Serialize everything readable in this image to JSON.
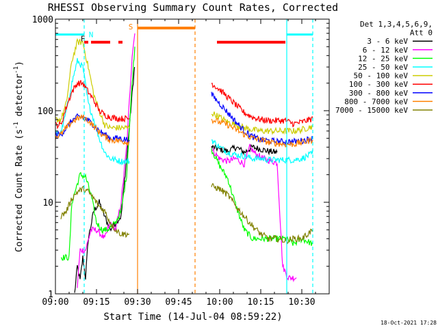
{
  "chart_data": {
    "type": "line",
    "title": "RHESSI Observing Summary Count Rates, Corrected",
    "xlabel": "Start Time (14-Jul-04 08:59:22)",
    "ylabel": "Corrected Count Rate (s",
    "ylabel_sup1": "-1",
    "ylabel_mid": " detector",
    "ylabel_sup2": "-1",
    "ylabel_end": ")",
    "y_scale": "log",
    "xlim_minutes": [
      0,
      100
    ],
    "ylim": [
      1,
      1000
    ],
    "x_ticks": [
      {
        "label": "09:00",
        "min": 0
      },
      {
        "label": "09:15",
        "min": 15
      },
      {
        "label": "09:30",
        "min": 30
      },
      {
        "label": "09:45",
        "min": 45
      },
      {
        "label": "10:00",
        "min": 60
      },
      {
        "label": "10:15",
        "min": 75
      },
      {
        "label": "10:30",
        "min": 90
      }
    ],
    "y_ticks": [
      {
        "label": "1",
        "v": 1
      },
      {
        "label": "10",
        "v": 10
      },
      {
        "label": "100",
        "v": 100
      },
      {
        "label": "1000",
        "v": 1000
      }
    ],
    "legend_title": [
      "Det 1,3,4,5,6,9,",
      "Att 0"
    ],
    "series": [
      {
        "name": "3 - 6 keV",
        "color": "#000000",
        "segments": [
          [
            [
              7,
              1
            ],
            [
              8,
              2
            ],
            [
              9,
              1.4
            ],
            [
              10,
              2.5
            ],
            [
              11,
              1.5
            ],
            [
              12,
              4
            ],
            [
              14,
              8
            ],
            [
              16,
              10
            ],
            [
              18,
              7
            ],
            [
              20,
              5
            ],
            [
              22,
              6
            ],
            [
              24,
              7
            ],
            [
              26,
              30
            ],
            [
              28,
              150
            ],
            [
              28.9,
              300
            ]
          ],
          [
            [
              57,
              40
            ],
            [
              60,
              38
            ],
            [
              63,
              36
            ],
            [
              66,
              40
            ],
            [
              69,
              35
            ],
            [
              72,
              40
            ],
            [
              75,
              38
            ],
            [
              78,
              36
            ],
            [
              81,
              35
            ]
          ]
        ]
      },
      {
        "name": "6 - 12 keV",
        "color": "#ff00ff",
        "segments": [
          [
            [
              8,
              1.2
            ],
            [
              9,
              3
            ],
            [
              11,
              3
            ],
            [
              13,
              5
            ],
            [
              15,
              5
            ],
            [
              18,
              4
            ],
            [
              20,
              6
            ],
            [
              22,
              5
            ],
            [
              24,
              10
            ],
            [
              26,
              40
            ],
            [
              28,
              400
            ],
            [
              29,
              700
            ]
          ],
          [
            [
              57,
              38
            ],
            [
              60,
              30
            ],
            [
              63,
              28
            ],
            [
              66,
              30
            ],
            [
              69,
              26
            ],
            [
              71,
              40
            ],
            [
              73,
              34
            ],
            [
              76,
              30
            ],
            [
              79,
              28
            ],
            [
              81,
              27
            ],
            [
              83,
              2
            ],
            [
              85,
              1.5
            ],
            [
              88,
              1.5
            ]
          ]
        ]
      },
      {
        "name": "12 - 25 keV",
        "color": "#00ff00",
        "segments": [
          [
            [
              2,
              2.5
            ],
            [
              5,
              2.5
            ],
            [
              6,
              10
            ],
            [
              9,
              20
            ],
            [
              11,
              19
            ],
            [
              13,
              12
            ],
            [
              15,
              6
            ],
            [
              17,
              5
            ],
            [
              19,
              5
            ],
            [
              22,
              6
            ],
            [
              24,
              8
            ],
            [
              26,
              20
            ],
            [
              28,
              200
            ],
            [
              29,
              500
            ]
          ],
          [
            [
              57,
              38
            ],
            [
              60,
              25
            ],
            [
              63,
              18
            ],
            [
              66,
              9
            ],
            [
              69,
              5
            ],
            [
              72,
              4
            ],
            [
              75,
              4
            ],
            [
              78,
              4
            ],
            [
              81,
              4
            ],
            [
              84,
              4
            ],
            [
              87,
              3.5
            ],
            [
              90,
              4
            ],
            [
              94,
              3.5
            ]
          ]
        ]
      },
      {
        "name": "25 - 50 keV",
        "color": "#00ffff",
        "segments": [
          [
            [
              0,
              57
            ],
            [
              2,
              57
            ],
            [
              4,
              100
            ],
            [
              6,
              200
            ],
            [
              8,
              350
            ],
            [
              10,
              300
            ],
            [
              12,
              120
            ],
            [
              14,
              80
            ],
            [
              16,
              50
            ],
            [
              18,
              35
            ],
            [
              20,
              30
            ],
            [
              22,
              29
            ],
            [
              24,
              28
            ],
            [
              27,
              28
            ]
          ],
          [
            [
              57,
              48
            ],
            [
              60,
              40
            ],
            [
              63,
              35
            ],
            [
              66,
              33
            ],
            [
              69,
              32
            ],
            [
              72,
              30
            ],
            [
              75,
              30
            ],
            [
              78,
              29
            ],
            [
              81,
              29
            ],
            [
              84,
              29
            ],
            [
              87,
              29
            ],
            [
              90,
              30
            ],
            [
              94,
              34
            ]
          ]
        ]
      },
      {
        "name": "50 - 100 keV",
        "color": "#cccc00",
        "segments": [
          [
            [
              0,
              80
            ],
            [
              2,
              80
            ],
            [
              4,
              120
            ],
            [
              6,
              350
            ],
            [
              8,
              560
            ],
            [
              10,
              560
            ],
            [
              12,
              300
            ],
            [
              14,
              150
            ],
            [
              16,
              100
            ],
            [
              18,
              70
            ],
            [
              20,
              65
            ],
            [
              23,
              65
            ],
            [
              27,
              65
            ]
          ],
          [
            [
              57,
              95
            ],
            [
              60,
              85
            ],
            [
              63,
              75
            ],
            [
              66,
              70
            ],
            [
              69,
              65
            ],
            [
              72,
              62
            ],
            [
              75,
              60
            ],
            [
              78,
              60
            ],
            [
              81,
              60
            ],
            [
              84,
              60
            ],
            [
              87,
              60
            ],
            [
              90,
              62
            ],
            [
              94,
              68
            ]
          ]
        ]
      },
      {
        "name": "100 - 300 keV",
        "color": "#ff0000",
        "segments": [
          [
            [
              0,
              70
            ],
            [
              2,
              70
            ],
            [
              4,
              110
            ],
            [
              6,
              160
            ],
            [
              8,
              200
            ],
            [
              10,
              200
            ],
            [
              12,
              160
            ],
            [
              14,
              130
            ],
            [
              16,
              100
            ],
            [
              18,
              90
            ],
            [
              20,
              85
            ],
            [
              23,
              82
            ],
            [
              27,
              82
            ]
          ],
          [
            [
              57,
              200
            ],
            [
              60,
              170
            ],
            [
              63,
              140
            ],
            [
              66,
              115
            ],
            [
              69,
              95
            ],
            [
              72,
              85
            ],
            [
              75,
              80
            ],
            [
              78,
              78
            ],
            [
              81,
              78
            ],
            [
              84,
              78
            ],
            [
              87,
              72
            ],
            [
              90,
              75
            ],
            [
              94,
              82
            ]
          ]
        ]
      },
      {
        "name": "300 - 800 keV",
        "color": "#0000ff",
        "segments": [
          [
            [
              0,
              55
            ],
            [
              2,
              55
            ],
            [
              4,
              65
            ],
            [
              6,
              78
            ],
            [
              8,
              85
            ],
            [
              10,
              85
            ],
            [
              12,
              78
            ],
            [
              14,
              70
            ],
            [
              16,
              60
            ],
            [
              18,
              55
            ],
            [
              20,
              50
            ],
            [
              23,
              50
            ],
            [
              27,
              48
            ]
          ],
          [
            [
              57,
              150
            ],
            [
              60,
              120
            ],
            [
              63,
              95
            ],
            [
              66,
              75
            ],
            [
              69,
              60
            ],
            [
              72,
              52
            ],
            [
              75,
              48
            ],
            [
              78,
              47
            ],
            [
              81,
              46
            ],
            [
              84,
              46
            ],
            [
              87,
              46
            ],
            [
              90,
              47
            ],
            [
              94,
              50
            ]
          ]
        ]
      },
      {
        "name": "800 - 7000 keV",
        "color": "#ff8000",
        "segments": [
          [
            [
              0,
              52
            ],
            [
              2,
              55
            ],
            [
              4,
              65
            ],
            [
              6,
              75
            ],
            [
              8,
              82
            ],
            [
              10,
              85
            ],
            [
              12,
              78
            ],
            [
              14,
              68
            ],
            [
              16,
              58
            ],
            [
              18,
              52
            ],
            [
              20,
              48
            ],
            [
              23,
              47
            ],
            [
              27,
              45
            ]
          ],
          [
            [
              57,
              80
            ],
            [
              60,
              75
            ],
            [
              63,
              70
            ],
            [
              66,
              62
            ],
            [
              69,
              55
            ],
            [
              72,
              50
            ],
            [
              75,
              48
            ],
            [
              78,
              45
            ],
            [
              81,
              44
            ],
            [
              84,
              43
            ],
            [
              87,
              43
            ],
            [
              90,
              45
            ],
            [
              94,
              48
            ]
          ]
        ]
      },
      {
        "name": "7000 - 15000 keV",
        "color": "#808000",
        "segments": [
          [
            [
              2,
              7
            ],
            [
              4,
              8
            ],
            [
              6,
              11
            ],
            [
              8,
              13
            ],
            [
              10,
              14
            ],
            [
              12,
              13
            ],
            [
              14,
              11
            ],
            [
              16,
              9
            ],
            [
              18,
              8
            ],
            [
              20,
              6
            ],
            [
              22,
              5
            ],
            [
              24,
              4.5
            ],
            [
              27,
              4.5
            ]
          ],
          [
            [
              57,
              15
            ],
            [
              60,
              14
            ],
            [
              63,
              12
            ],
            [
              66,
              9
            ],
            [
              69,
              7
            ],
            [
              72,
              5.5
            ],
            [
              75,
              4.5
            ],
            [
              78,
              4
            ],
            [
              81,
              4
            ],
            [
              84,
              3.8
            ],
            [
              87,
              4
            ],
            [
              90,
              4
            ],
            [
              94,
              5
            ]
          ]
        ]
      }
    ],
    "attenuator_orange": {
      "color": "#ff8000",
      "start_min": 30,
      "gap_start_min": 51,
      "y": 800
    },
    "flare_bar": {
      "color": "#ff0000",
      "label": "F",
      "segments": [
        [
          10.5,
          12
        ],
        [
          13,
          20
        ],
        [
          23,
          24.5
        ],
        [
          59,
          84
        ]
      ],
      "y": 560
    },
    "night_bar": {
      "color": "#00ffff",
      "label": "N",
      "segments": [
        [
          0,
          10.5
        ],
        [
          84.5,
          94
        ]
      ],
      "y": 680
    },
    "saa_label": {
      "text": "S",
      "color": "#ff8000",
      "min": 26.5
    },
    "vlines": [
      {
        "min": 10.5,
        "color": "#00ffff",
        "style": "dash"
      },
      {
        "min": 30,
        "color": "#ff8000",
        "style": "solid"
      },
      {
        "min": 51,
        "color": "#ff8000",
        "style": "dash"
      },
      {
        "min": 84.5,
        "color": "#00ffff",
        "style": "solid"
      },
      {
        "min": 94,
        "color": "#00ffff",
        "style": "dash"
      }
    ]
  },
  "footer_date": "18-Oct-2021 17:28"
}
